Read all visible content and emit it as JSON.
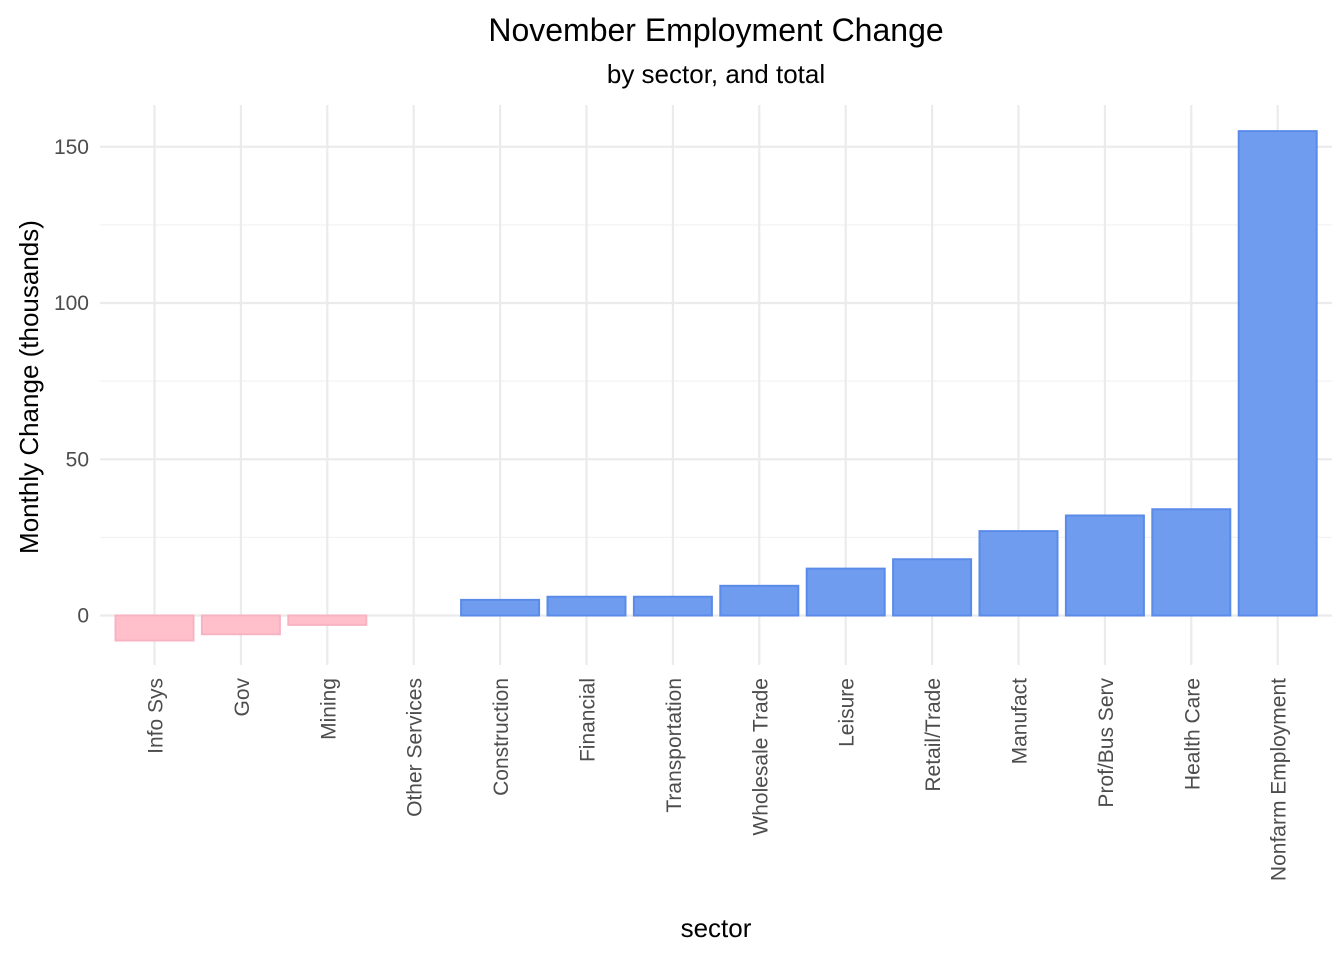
{
  "chart_data": {
    "type": "bar",
    "title": "November Employment Change",
    "subtitle": "by sector, and total",
    "xlabel": "sector",
    "ylabel": "Monthly Change (thousands)",
    "categories": [
      "Info Sys",
      "Gov",
      "Mining",
      "Other Services",
      "Construction",
      "Financial",
      "Transportation",
      "Wholesale Trade",
      "Leisure",
      "Retail/Trade",
      "Manufact",
      "Prof/Bus Serv",
      "Health Care",
      "Nonfarm Employment"
    ],
    "values": [
      -8,
      -6,
      -3,
      0,
      5,
      6,
      6,
      9.5,
      15,
      18,
      27,
      32,
      34,
      155
    ],
    "ylim": [
      -10,
      162
    ],
    "yticks": [
      0,
      50,
      100,
      150
    ],
    "grid": true,
    "legend": "none",
    "colors": {
      "positive_fill": "#6f9cee",
      "positive_stroke": "#5a8be8",
      "negative_fill": "#ffc0cb",
      "negative_stroke": "#f7b3c2"
    }
  }
}
